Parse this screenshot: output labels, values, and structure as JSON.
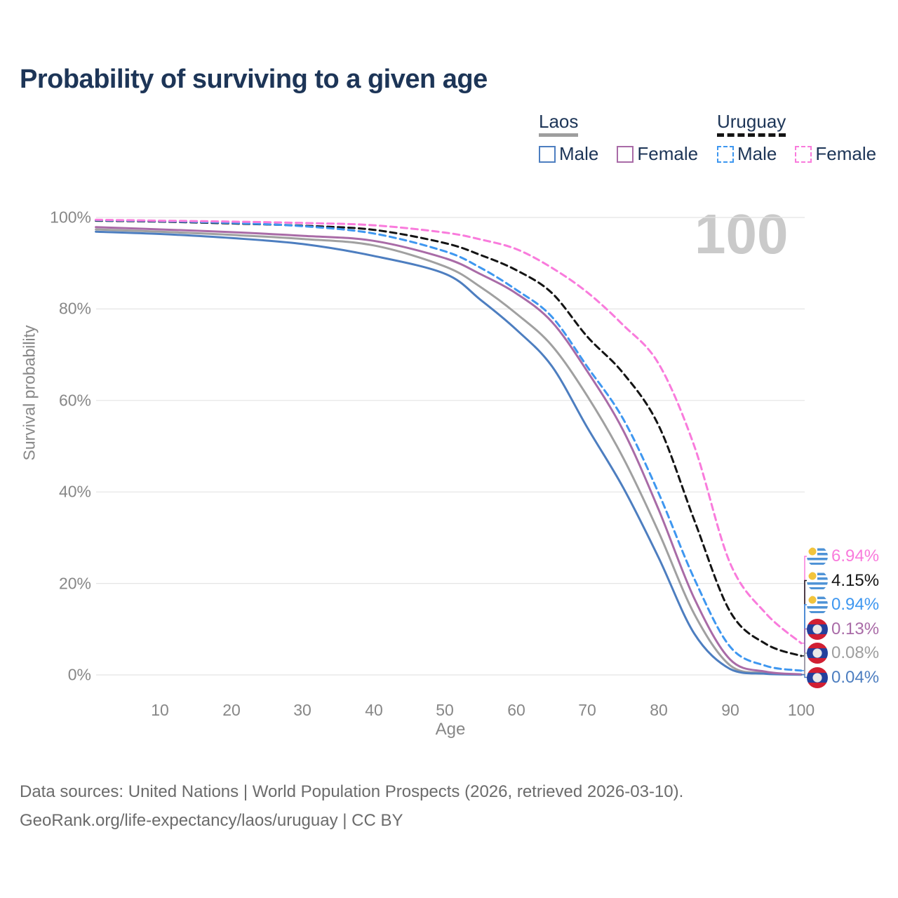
{
  "title": "Probability of surviving to a given age",
  "watermark": "100",
  "legend": {
    "groups": [
      {
        "name": "Laos",
        "line_style": "solid",
        "underline_color": "#9e9e9e",
        "items": [
          {
            "label": "Male",
            "color": "#4d7ec0",
            "dashed": false
          },
          {
            "label": "Female",
            "color": "#a96ba7",
            "dashed": false
          }
        ]
      },
      {
        "name": "Uruguay",
        "line_style": "dashed",
        "underline_color": "#141414",
        "items": [
          {
            "label": "Male",
            "color": "#3e97f0",
            "dashed": true
          },
          {
            "label": "Female",
            "color": "#f97bdc",
            "dashed": true
          }
        ]
      }
    ]
  },
  "axes": {
    "y_label": "Survival probability",
    "x_label": "Age",
    "y_ticks": [
      "100%",
      "80%",
      "60%",
      "40%",
      "20%",
      "0%"
    ],
    "x_ticks": [
      "10",
      "20",
      "30",
      "40",
      "50",
      "60",
      "70",
      "80",
      "90",
      "100"
    ]
  },
  "chart_data": {
    "type": "line",
    "title": "Probability of surviving to a given age",
    "xlabel": "Age",
    "ylabel": "Survival probability",
    "xlim": [
      1,
      100
    ],
    "ylim": [
      0,
      100
    ],
    "grid": "horizontal",
    "legend_position": "top-right",
    "x": [
      1,
      10,
      20,
      30,
      40,
      50,
      55,
      60,
      65,
      70,
      75,
      80,
      85,
      90,
      95,
      100
    ],
    "series": [
      {
        "id": "laos-total",
        "name": "Laos",
        "country": "Laos",
        "sex": "Both",
        "color": "#a0a0a0",
        "dashed": false,
        "values": [
          97.4,
          96.9,
          96.2,
          95.3,
          93.9,
          89.3,
          84.8,
          79.0,
          72.0,
          60.9,
          47.5,
          31.2,
          13.3,
          2.1,
          0.4,
          0.08
        ]
      },
      {
        "id": "laos-male",
        "name": "Male",
        "country": "Laos",
        "sex": "Male",
        "color": "#4d7ec0",
        "dashed": false,
        "values": [
          96.9,
          96.4,
          95.5,
          94.2,
          91.6,
          87.7,
          82.0,
          75.5,
          67.5,
          54.0,
          41.0,
          25.6,
          9.0,
          1.3,
          0.25,
          0.04
        ]
      },
      {
        "id": "laos-female",
        "name": "Female",
        "country": "Laos",
        "sex": "Female",
        "color": "#a96ba7",
        "dashed": false,
        "values": [
          97.9,
          97.4,
          96.8,
          96.0,
          94.9,
          91.1,
          87.6,
          83.4,
          77.2,
          66.3,
          53.5,
          36.1,
          16.7,
          3.4,
          0.7,
          0.13
        ]
      },
      {
        "id": "uruguay-total",
        "name": "Uruguay",
        "country": "Uruguay",
        "sex": "Both",
        "color": "#141414",
        "dashed": true,
        "values": [
          99.3,
          99.1,
          98.7,
          98.2,
          97.3,
          94.4,
          91.8,
          88.5,
          83.5,
          73.9,
          66.0,
          54.5,
          33.8,
          13.9,
          6.8,
          4.15
        ]
      },
      {
        "id": "uruguay-male",
        "name": "Male",
        "country": "Uruguay",
        "sex": "Male",
        "color": "#3e97f0",
        "dashed": true,
        "values": [
          99.4,
          99.2,
          98.8,
          98.1,
          96.5,
          92.6,
          89.0,
          84.2,
          78.3,
          67.3,
          56.0,
          39.7,
          21.0,
          6.2,
          2.0,
          0.94
        ]
      },
      {
        "id": "uruguay-female",
        "name": "Female",
        "country": "Uruguay",
        "sex": "Female",
        "color": "#f97bdc",
        "dashed": true,
        "values": [
          99.5,
          99.3,
          99.1,
          98.8,
          98.3,
          96.7,
          95.2,
          93.1,
          89.0,
          83.6,
          76.5,
          68.0,
          50.0,
          24.5,
          13.5,
          6.94
        ]
      }
    ]
  },
  "end_labels": [
    {
      "series": "uruguay-female",
      "country": "uruguay",
      "value": "6.94%",
      "color": "#f97bdc"
    },
    {
      "series": "uruguay-total",
      "country": "uruguay",
      "value": "4.15%",
      "color": "#141414"
    },
    {
      "series": "uruguay-male",
      "country": "uruguay",
      "value": "0.94%",
      "color": "#3e97f0"
    },
    {
      "series": "laos-female",
      "country": "laos",
      "value": "0.13%",
      "color": "#a96ba7"
    },
    {
      "series": "laos-total",
      "country": "laos",
      "value": "0.08%",
      "color": "#9e9e9e"
    },
    {
      "series": "laos-male",
      "country": "laos",
      "value": "0.04%",
      "color": "#4d7ec0"
    }
  ],
  "footer": {
    "line1": "Data sources: United Nations | World Population Prospects (2026, retrieved 2026-03-10).",
    "line2": "GeoRank.org/life-expectancy/laos/uruguay | CC BY"
  }
}
